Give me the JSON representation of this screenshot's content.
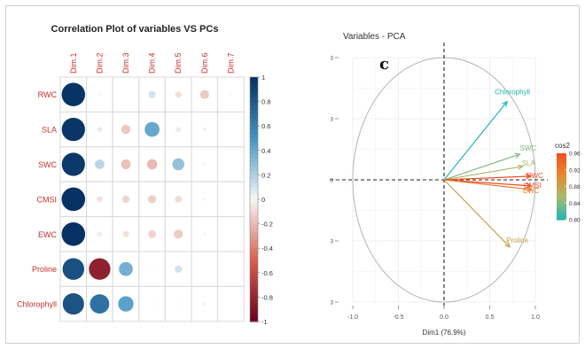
{
  "chart_data": [
    {
      "type": "heatmap",
      "title": "Correlation Plot of variables VS PCs",
      "columns": [
        "Dim.1",
        "Dim.2",
        "Dim.3",
        "Dim.4",
        "Dim.5",
        "Dim.6",
        "Dim.7"
      ],
      "rows": [
        "RWC",
        "SLA",
        "SWC",
        "CMSI",
        "EWC",
        "Proline",
        "Chlorophyll"
      ],
      "values": [
        [
          0.98,
          0.02,
          0.0,
          0.1,
          -0.08,
          -0.15,
          0.01
        ],
        [
          0.97,
          0.05,
          -0.16,
          0.4,
          -0.05,
          0.03,
          0.0
        ],
        [
          0.96,
          0.17,
          -0.18,
          -0.2,
          0.27,
          0.02,
          0.0
        ],
        [
          0.99,
          -0.07,
          -0.11,
          -0.13,
          -0.09,
          0.02,
          0.0
        ],
        [
          0.99,
          -0.05,
          -0.08,
          -0.12,
          -0.15,
          -0.02,
          0.0
        ],
        [
          0.84,
          -0.83,
          0.36,
          0.01,
          0.1,
          0.0,
          0.0
        ],
        [
          0.82,
          0.67,
          0.43,
          0.01,
          0.01,
          0.02,
          0.0
        ]
      ],
      "colorbar": {
        "ticks": [
          "1",
          "0.8",
          "0.6",
          "0.4",
          "0.2",
          "0",
          "-0.2",
          "-0.4",
          "-0.6",
          "-0.8",
          "-1"
        ],
        "ylim": [
          -1,
          1
        ],
        "colors": {
          "positive": "#053061",
          "zero": "#ffffff",
          "negative": "#67001f"
        }
      }
    },
    {
      "type": "scatter",
      "subtype": "pca-variable-arrows",
      "title": "Variables - PCA",
      "panel_letter": "c",
      "xlabel": "Dim1 (76.9%)",
      "ylabel": "",
      "xlim": [
        -1.0,
        1.0
      ],
      "ylim": [
        -1.0,
        1.0
      ],
      "xticks": [
        "-1.0",
        "-0.5",
        "0.0",
        "0.5",
        "1.0"
      ],
      "yticks": [
        "3",
        "3",
        "3",
        "3",
        "3"
      ],
      "grid": true,
      "arrows": [
        {
          "name": "Chlorophyll",
          "x": 0.69,
          "y": 0.64,
          "cos2": 0.8
        },
        {
          "name": "SWC",
          "x": 0.83,
          "y": 0.21,
          "cos2": 0.84
        },
        {
          "name": "SLA",
          "x": 0.86,
          "y": 0.11,
          "cos2": 0.86
        },
        {
          "name": "RWC",
          "x": 0.95,
          "y": 0.03,
          "cos2": 0.96
        },
        {
          "name": "CMSI",
          "x": 0.95,
          "y": -0.05,
          "cos2": 0.96
        },
        {
          "name": "EWC",
          "x": 0.96,
          "y": -0.08,
          "cos2": 0.92
        },
        {
          "name": "Proline",
          "x": 0.72,
          "y": -0.55,
          "cos2": 0.88
        }
      ],
      "legend": {
        "title": "cos2",
        "position": "right",
        "ticks": [
          "0.96",
          "0.92",
          "0.88",
          "0.84",
          "0.80"
        ],
        "range": [
          0.8,
          0.96
        ],
        "colors": [
          "#24b3b3",
          "#a6bb70",
          "#e68a2e",
          "#f04e23"
        ]
      }
    }
  ]
}
